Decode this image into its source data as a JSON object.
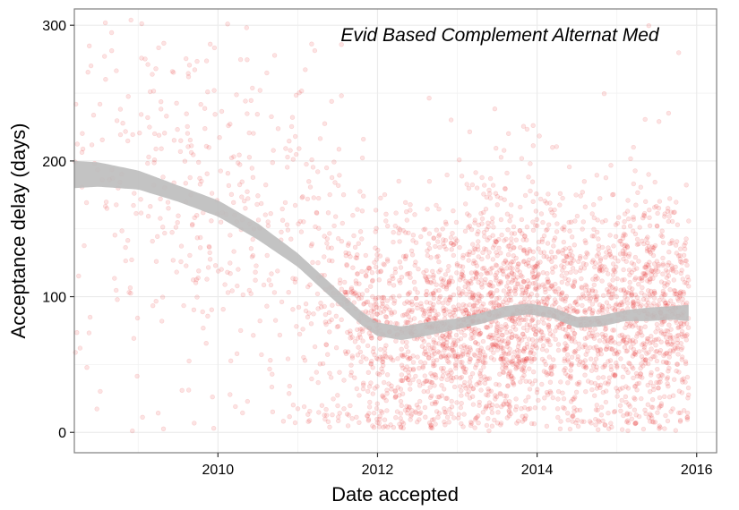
{
  "chart_data": {
    "type": "scatter",
    "annotation": "Evid Based Complement Alternat Med",
    "xlabel": "Date accepted",
    "ylabel": "Acceptance delay (days)",
    "xlim": [
      2008.2,
      2016.25
    ],
    "ylim": [
      -15,
      312
    ],
    "x_ticks": [
      2010,
      2012,
      2014,
      2016
    ],
    "y_ticks": [
      0,
      100,
      200,
      300
    ],
    "grid": true,
    "point_color": "#e31a1c",
    "point_opacity": 0.12,
    "smooth_color": "#bdbdbd",
    "smooth_curve": {
      "x": [
        2008.2,
        2008.5,
        2009.0,
        2009.5,
        2010.0,
        2010.5,
        2011.0,
        2011.5,
        2011.8,
        2012.0,
        2012.3,
        2012.6,
        2013.0,
        2013.3,
        2013.6,
        2013.9,
        2014.2,
        2014.5,
        2014.8,
        2015.1,
        2015.4,
        2015.7,
        2015.9
      ],
      "y": [
        190,
        190,
        186,
        176,
        165,
        148,
        127,
        100,
        84,
        76,
        73,
        76,
        80,
        84,
        89,
        91,
        88,
        81,
        82,
        86,
        87,
        88,
        88
      ],
      "band_halfwidth": [
        10,
        9,
        7,
        6,
        6,
        6,
        5,
        5,
        5,
        5,
        5,
        5,
        4,
        4,
        4,
        4,
        4,
        4,
        4,
        4,
        5,
        5,
        6
      ]
    },
    "density_profile": {
      "x": [
        2008.2,
        2009.0,
        2010.0,
        2011.0,
        2011.5,
        2012.0,
        2012.5,
        2013.0,
        2013.3,
        2013.6,
        2014.0,
        2014.5,
        2015.0,
        2015.5,
        2015.9
      ],
      "relative_density": [
        0.5,
        0.6,
        0.9,
        1.0,
        1.6,
        3.0,
        3.6,
        4.2,
        4.6,
        4.2,
        3.8,
        3.5,
        3.5,
        3.6,
        3.4
      ]
    }
  }
}
